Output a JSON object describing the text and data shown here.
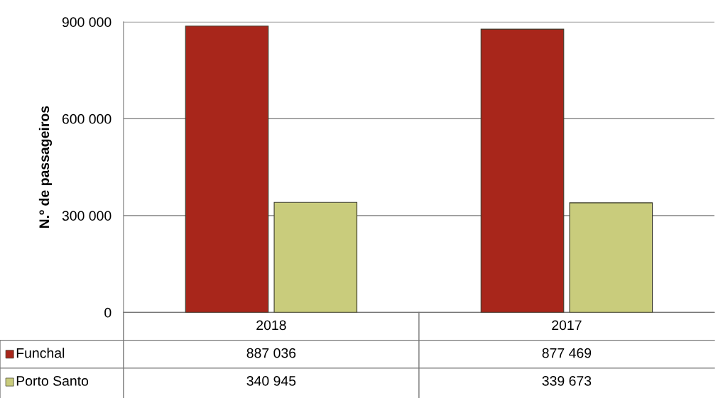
{
  "chart_data": {
    "type": "bar",
    "ylabel": "N.º de passageiros",
    "categories": [
      "2018",
      "2017"
    ],
    "series": [
      {
        "name": "Funchal",
        "color": "#a8261b",
        "values": [
          887036,
          877469
        ],
        "value_labels": [
          "887 036",
          "877 469"
        ]
      },
      {
        "name": "Porto Santo",
        "color": "#c9cc7c",
        "values": [
          340945,
          339673
        ],
        "value_labels": [
          "340 945",
          "339 673"
        ]
      }
    ],
    "ylim": [
      0,
      900000
    ],
    "yticks": [
      {
        "value": 0,
        "label": "0"
      },
      {
        "value": 300000,
        "label": "300 000"
      },
      {
        "value": 600000,
        "label": "600 000"
      },
      {
        "value": 900000,
        "label": "900 000"
      }
    ],
    "grid": "y",
    "legend": "bottom left"
  }
}
